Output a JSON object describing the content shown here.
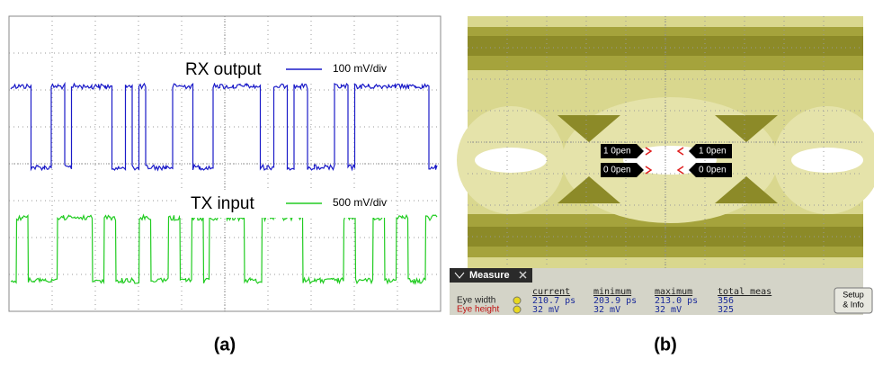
{
  "panel_a": {
    "caption": "(a)",
    "rx": {
      "label": "RX output",
      "scale": "100 mV/div"
    },
    "tx": {
      "label": "TX input",
      "scale": "500 mV/div"
    }
  },
  "panel_b": {
    "caption": "(b)",
    "markers": [
      "1 0pen",
      "1 0pen",
      "0 0pen",
      "0 0pen"
    ],
    "measure": {
      "title": "Measure",
      "headers": [
        "current",
        "minimum",
        "maximum",
        "total meas"
      ],
      "rows": [
        {
          "name": "Eye width",
          "values": [
            "210.7 ps",
            "203.9 ps",
            "213.0 ps",
            "356"
          ]
        },
        {
          "name": "Eye height",
          "values": [
            "32 mV",
            "32 mV",
            "32 mV",
            "325"
          ]
        }
      ]
    },
    "button": [
      "Setup",
      "& Info"
    ]
  }
}
